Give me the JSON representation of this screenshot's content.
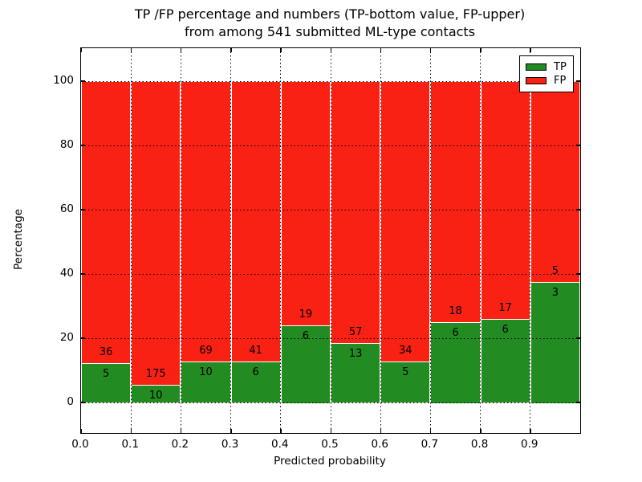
{
  "figure": {
    "title_line1": "TP /FP percentage and numbers (TP-bottom value, FP-upper)",
    "title_line2": "from among 541 submitted ML-type contacts",
    "xlabel": "Predicted probability",
    "ylabel": "Percentage"
  },
  "legend": {
    "position": "upper-right",
    "items": [
      {
        "label": "TP",
        "color": "#228b22"
      },
      {
        "label": "FP",
        "color": "#f92014"
      }
    ]
  },
  "colors": {
    "tp_green": "#228b22",
    "fp_red": "#f92014",
    "background": "#ffffff",
    "text": "#000000",
    "grid": "#000000",
    "bar_edge": "#ffffff"
  },
  "chart_data": {
    "type": "bar",
    "stacked": true,
    "units": "percent of bin (each bin normalized to 100%)",
    "title": "TP /FP percentage and numbers (TP-bottom value, FP-upper) from among 541 submitted ML-type contacts",
    "xlabel": "Predicted probability",
    "ylabel": "Percentage",
    "x_tick_labels": [
      "0.0",
      "0.1",
      "0.2",
      "0.3",
      "0.4",
      "0.5",
      "0.6",
      "0.7",
      "0.8",
      "0.9"
    ],
    "y_ticks": [
      0,
      20,
      40,
      60,
      80,
      100
    ],
    "xlim": [
      0.0,
      1.0
    ],
    "ylim": [
      -10,
      110
    ],
    "bin_width": 0.1,
    "bin_starts": [
      0.0,
      0.1,
      0.2,
      0.3,
      0.4,
      0.5,
      0.6,
      0.7,
      0.8,
      0.9
    ],
    "series": [
      {
        "name": "TP",
        "color": "#228b22",
        "counts": [
          5,
          10,
          10,
          6,
          6,
          13,
          5,
          6,
          6,
          3
        ]
      },
      {
        "name": "FP",
        "color": "#f92014",
        "counts": [
          36,
          175,
          69,
          41,
          19,
          57,
          34,
          18,
          17,
          5
        ]
      }
    ],
    "tp_percent_of_bin": [
      12.2,
      5.4,
      12.7,
      12.8,
      24.0,
      18.6,
      12.8,
      25.0,
      26.1,
      37.5
    ],
    "total_contacts": 541,
    "grid": "dotted black, both axes, drawn over bars",
    "legend_position": "upper right"
  }
}
